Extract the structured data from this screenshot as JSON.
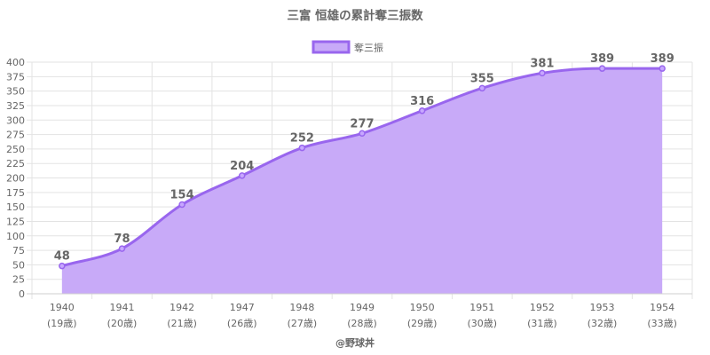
{
  "chart_data": {
    "type": "line",
    "title": "三富 恒雄の累計奪三振数",
    "categories": [
      "1940",
      "1941",
      "1942",
      "1947",
      "1948",
      "1949",
      "1950",
      "1951",
      "1952",
      "1953",
      "1954"
    ],
    "category_sublabels": [
      "(19歳)",
      "(20歳)",
      "(21歳)",
      "(26歳)",
      "(27歳)",
      "(28歳)",
      "(29歳)",
      "(30歳)",
      "(31歳)",
      "(32歳)",
      "(33歳)"
    ],
    "series": [
      {
        "name": "奪三振",
        "values": [
          48,
          78,
          154,
          204,
          252,
          277,
          316,
          355,
          381,
          389,
          389
        ]
      }
    ],
    "y_ticks": [
      "0",
      "25",
      "50",
      "75",
      "100",
      "125",
      "150",
      "175",
      "200",
      "225",
      "250",
      "275",
      "300",
      "325",
      "350",
      "375",
      "400"
    ],
    "ylim": [
      0,
      400
    ],
    "grid": true,
    "fill_area": true,
    "legend_position": "top",
    "colors": {
      "line": "#9966ee",
      "fill": "#c8aaf8",
      "point_fill": "#c7a7ff",
      "grid": "#e3e3e3",
      "text": "#666666"
    }
  },
  "credit": "@野球丼"
}
